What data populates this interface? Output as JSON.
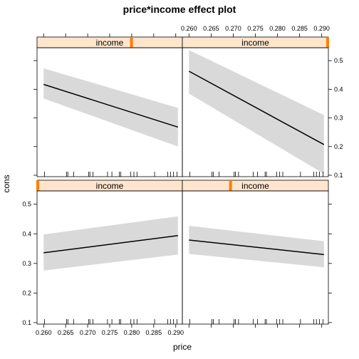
{
  "chart_data": {
    "type": "line",
    "title": "price*income effect plot",
    "xlabel": "price",
    "ylabel": "cons",
    "xlim": [
      0.2585,
      0.2915
    ],
    "ylim": [
      0.095,
      0.545
    ],
    "x_ticks": [
      "0.260",
      "0.265",
      "0.270",
      "0.275",
      "0.280",
      "0.285",
      "0.290"
    ],
    "y_ticks": [
      "0.1",
      "0.2",
      "0.3",
      "0.4",
      "0.5"
    ],
    "strip_label": "income",
    "accent_color": "#ff7f00",
    "band_color": "#d9d9d9",
    "rug_x": [
      0.2602,
      0.2652,
      0.2655,
      0.2668,
      0.2702,
      0.2705,
      0.2712,
      0.2745,
      0.2755,
      0.2772,
      0.2775,
      0.2798,
      0.2805,
      0.2812,
      0.2852,
      0.2882,
      0.2888,
      0.2895,
      0.2903
    ],
    "panels": [
      {
        "position": "top-left",
        "income_marker": 0.65,
        "x": [
          0.26,
          0.2905
        ],
        "fit": [
          0.417,
          0.268
        ],
        "lower": [
          0.368,
          0.2
        ],
        "upper": [
          0.473,
          0.335
        ]
      },
      {
        "position": "top-right",
        "income_marker": 0.995,
        "x": [
          0.26,
          0.2905
        ],
        "fit": [
          0.463,
          0.207
        ],
        "lower": [
          0.385,
          0.105
        ],
        "upper": [
          0.537,
          0.31
        ]
      },
      {
        "position": "bottom-left",
        "income_marker": 0.005,
        "x": [
          0.26,
          0.2905
        ],
        "fit": [
          0.336,
          0.394
        ],
        "lower": [
          0.276,
          0.33
        ],
        "upper": [
          0.398,
          0.459
        ]
      },
      {
        "position": "bottom-right",
        "income_marker": 0.33,
        "x": [
          0.26,
          0.2905
        ],
        "fit": [
          0.379,
          0.33
        ],
        "lower": [
          0.332,
          0.287
        ],
        "upper": [
          0.427,
          0.375
        ]
      }
    ]
  }
}
